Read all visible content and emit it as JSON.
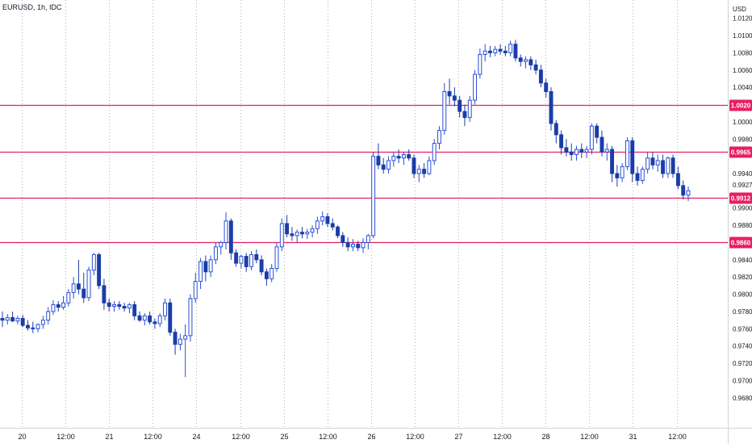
{
  "symbol_label": "EURUSD, 1h, IDC",
  "currency": "USD",
  "colors": {
    "up": "#2a4fd6",
    "down": "#1a3da8",
    "hline": "#e91e63",
    "grid": "#b0b4bc",
    "axis_text": "#131722",
    "tag_text": "#ffffff"
  },
  "chart_data": {
    "type": "candlestick",
    "title": "EURUSD, 1h, IDC",
    "ylabel": "USD",
    "ylim": [
      0.9662,
      1.013
    ],
    "grid": "vertical-dotted",
    "y_ticks": [
      "1.0120",
      "1.0100",
      "1.0080",
      "1.0060",
      "1.0040",
      "1.0000",
      "0.9980",
      "0.9940",
      "0.9927",
      "0.9900",
      "0.9880",
      "0.9840",
      "0.9820",
      "0.9800",
      "0.9780",
      "0.9760",
      "0.9740",
      "0.9720",
      "0.9700",
      "0.9680"
    ],
    "x_ticks": [
      "20",
      "12:00",
      "21",
      "12:00",
      "24",
      "12:00",
      "25",
      "12:00",
      "26",
      "12:00",
      "27",
      "12:00",
      "28",
      "12:00",
      "31",
      "12:00"
    ],
    "horizontal_lines": [
      {
        "label": "1.0020",
        "value": 1.002
      },
      {
        "label": "0.9965",
        "value": 0.9965
      },
      {
        "label": "0.9912",
        "value": 0.9912
      },
      {
        "label": "0.9860",
        "value": 0.986
      }
    ],
    "ohlc": [
      [
        0.9772,
        0.978,
        0.9762,
        0.977
      ],
      [
        0.977,
        0.9777,
        0.9765,
        0.9773
      ],
      [
        0.9773,
        0.978,
        0.9768,
        0.9769
      ],
      [
        0.9769,
        0.9775,
        0.9765,
        0.9772
      ],
      [
        0.9772,
        0.9776,
        0.9762,
        0.9764
      ],
      [
        0.9764,
        0.977,
        0.9758,
        0.9761
      ],
      [
        0.9761,
        0.9768,
        0.9755,
        0.976
      ],
      [
        0.976,
        0.9766,
        0.9756,
        0.9765
      ],
      [
        0.9765,
        0.9775,
        0.976,
        0.977
      ],
      [
        0.977,
        0.9785,
        0.9765,
        0.978
      ],
      [
        0.978,
        0.9793,
        0.9776,
        0.9788
      ],
      [
        0.9788,
        0.9792,
        0.978,
        0.9785
      ],
      [
        0.9785,
        0.9798,
        0.9782,
        0.979
      ],
      [
        0.979,
        0.9806,
        0.9786,
        0.9802
      ],
      [
        0.9802,
        0.982,
        0.9795,
        0.9812
      ],
      [
        0.9812,
        0.984,
        0.98,
        0.9806
      ],
      [
        0.9806,
        0.9825,
        0.979,
        0.9796
      ],
      [
        0.9796,
        0.9832,
        0.9792,
        0.9828
      ],
      [
        0.9828,
        0.9848,
        0.9822,
        0.9846
      ],
      [
        0.9846,
        0.9848,
        0.9806,
        0.981
      ],
      [
        0.981,
        0.9818,
        0.9782,
        0.979
      ],
      [
        0.979,
        0.9795,
        0.978,
        0.9786
      ],
      [
        0.9786,
        0.9792,
        0.978,
        0.9788
      ],
      [
        0.9788,
        0.9792,
        0.9782,
        0.9786
      ],
      [
        0.9786,
        0.979,
        0.978,
        0.9784
      ],
      [
        0.9784,
        0.979,
        0.9778,
        0.9788
      ],
      [
        0.9788,
        0.9792,
        0.977,
        0.9775
      ],
      [
        0.9775,
        0.978,
        0.9768,
        0.977
      ],
      [
        0.977,
        0.9778,
        0.9764,
        0.9775
      ],
      [
        0.9775,
        0.978,
        0.9765,
        0.9768
      ],
      [
        0.9768,
        0.9772,
        0.976,
        0.9766
      ],
      [
        0.9766,
        0.9778,
        0.9762,
        0.9775
      ],
      [
        0.9775,
        0.9795,
        0.977,
        0.979
      ],
      [
        0.979,
        0.9795,
        0.9752,
        0.9756
      ],
      [
        0.9756,
        0.976,
        0.973,
        0.9742
      ],
      [
        0.9742,
        0.9754,
        0.9735,
        0.9748
      ],
      [
        0.9748,
        0.9765,
        0.9704,
        0.9752
      ],
      [
        0.9752,
        0.98,
        0.9745,
        0.9795
      ],
      [
        0.9795,
        0.9825,
        0.979,
        0.9815
      ],
      [
        0.9815,
        0.9842,
        0.9806,
        0.9838
      ],
      [
        0.9838,
        0.9845,
        0.9815,
        0.9826
      ],
      [
        0.9826,
        0.9845,
        0.982,
        0.984
      ],
      [
        0.984,
        0.986,
        0.9835,
        0.9855
      ],
      [
        0.9855,
        0.9862,
        0.9846,
        0.986
      ],
      [
        0.986,
        0.9895,
        0.9852,
        0.9885
      ],
      [
        0.9885,
        0.9888,
        0.984,
        0.9848
      ],
      [
        0.9848,
        0.9852,
        0.9832,
        0.9836
      ],
      [
        0.9836,
        0.9846,
        0.983,
        0.9844
      ],
      [
        0.9844,
        0.9848,
        0.9826,
        0.9832
      ],
      [
        0.9832,
        0.985,
        0.9828,
        0.9846
      ],
      [
        0.9846,
        0.9852,
        0.9836,
        0.984
      ],
      [
        0.984,
        0.9845,
        0.9822,
        0.9826
      ],
      [
        0.9826,
        0.983,
        0.981,
        0.9818
      ],
      [
        0.9818,
        0.9835,
        0.9814,
        0.983
      ],
      [
        0.983,
        0.986,
        0.9826,
        0.9855
      ],
      [
        0.9855,
        0.9888,
        0.985,
        0.9882
      ],
      [
        0.9882,
        0.9892,
        0.9866,
        0.987
      ],
      [
        0.987,
        0.9878,
        0.9862,
        0.9868
      ],
      [
        0.9868,
        0.9875,
        0.986,
        0.9872
      ],
      [
        0.9872,
        0.9878,
        0.9865,
        0.987
      ],
      [
        0.987,
        0.9876,
        0.9864,
        0.9872
      ],
      [
        0.9872,
        0.988,
        0.9866,
        0.9876
      ],
      [
        0.9876,
        0.989,
        0.987,
        0.9885
      ],
      [
        0.9885,
        0.9896,
        0.988,
        0.989
      ],
      [
        0.989,
        0.9894,
        0.9878,
        0.9882
      ],
      [
        0.9882,
        0.9888,
        0.9874,
        0.9878
      ],
      [
        0.9878,
        0.988,
        0.9865,
        0.9868
      ],
      [
        0.9868,
        0.9872,
        0.9855,
        0.986
      ],
      [
        0.986,
        0.9866,
        0.985,
        0.9855
      ],
      [
        0.9855,
        0.9864,
        0.985,
        0.9858
      ],
      [
        0.9858,
        0.9862,
        0.985,
        0.9854
      ],
      [
        0.9854,
        0.9865,
        0.9848,
        0.986
      ],
      [
        0.986,
        0.987,
        0.9852,
        0.9868
      ],
      [
        0.9868,
        0.9965,
        0.9865,
        0.996
      ],
      [
        0.996,
        0.9975,
        0.9945,
        0.995
      ],
      [
        0.995,
        0.9958,
        0.994,
        0.9945
      ],
      [
        0.9945,
        0.996,
        0.994,
        0.9955
      ],
      [
        0.9955,
        0.9965,
        0.9948,
        0.996
      ],
      [
        0.996,
        0.9968,
        0.9952,
        0.9958
      ],
      [
        0.9958,
        0.9965,
        0.995,
        0.9962
      ],
      [
        0.9962,
        0.9968,
        0.9955,
        0.9958
      ],
      [
        0.9958,
        0.9962,
        0.9935,
        0.994
      ],
      [
        0.994,
        0.995,
        0.993,
        0.9945
      ],
      [
        0.9945,
        0.9952,
        0.9935,
        0.994
      ],
      [
        0.994,
        0.996,
        0.9938,
        0.9955
      ],
      [
        0.9955,
        0.998,
        0.995,
        0.9975
      ],
      [
        0.9975,
        0.9995,
        0.9968,
        0.999
      ],
      [
        0.999,
        1.0045,
        0.9985,
        1.0035
      ],
      [
        1.0035,
        1.005,
        1.002,
        1.003
      ],
      [
        1.003,
        1.004,
        1.0018,
        1.0025
      ],
      [
        1.0025,
        1.003,
        1.0005,
        1.0012
      ],
      [
        1.0012,
        1.002,
        0.9995,
        1.0005
      ],
      [
        1.0005,
        1.003,
        1.0,
        1.0025
      ],
      [
        1.0025,
        1.006,
        1.002,
        1.0055
      ],
      [
        1.0055,
        1.0085,
        1.005,
        1.0078
      ],
      [
        1.0078,
        1.009,
        1.007,
        1.0082
      ],
      [
        1.0082,
        1.0088,
        1.0075,
        1.008
      ],
      [
        1.008,
        1.0088,
        1.0076,
        1.0084
      ],
      [
        1.0084,
        1.009,
        1.0078,
        1.0082
      ],
      [
        1.0082,
        1.0088,
        1.0076,
        1.008
      ],
      [
        1.008,
        1.0094,
        1.0076,
        1.009
      ],
      [
        1.009,
        1.0095,
        1.007,
        1.0074
      ],
      [
        1.0074,
        1.0078,
        1.0064,
        1.007
      ],
      [
        1.007,
        1.0076,
        1.0062,
        1.0072
      ],
      [
        1.0072,
        1.0076,
        1.006,
        1.0066
      ],
      [
        1.0066,
        1.0072,
        1.0055,
        1.006
      ],
      [
        1.006,
        1.0066,
        1.004,
        1.0045
      ],
      [
        1.0045,
        1.005,
        1.0028,
        1.0035
      ],
      [
        1.0035,
        1.004,
        0.999,
        0.9998
      ],
      [
        0.9998,
        1.0002,
        0.9975,
        0.9985
      ],
      [
        0.9985,
        0.999,
        0.9962,
        0.997
      ],
      [
        0.997,
        0.998,
        0.996,
        0.9965
      ],
      [
        0.9965,
        0.9975,
        0.9955,
        0.9962
      ],
      [
        0.9962,
        0.9972,
        0.9955,
        0.9968
      ],
      [
        0.9968,
        0.9975,
        0.9958,
        0.9965
      ],
      [
        0.9965,
        0.9972,
        0.9958,
        0.9968
      ],
      [
        0.9968,
        0.9998,
        0.9962,
        0.9995
      ],
      [
        0.9995,
        0.9998,
        0.9975,
        0.9982
      ],
      [
        0.9982,
        0.999,
        0.996,
        0.9965
      ],
      [
        0.9965,
        0.9975,
        0.9955,
        0.9968
      ],
      [
        0.9968,
        0.9972,
        0.993,
        0.994
      ],
      [
        0.994,
        0.995,
        0.9925,
        0.9935
      ],
      [
        0.9935,
        0.9952,
        0.993,
        0.9948
      ],
      [
        0.9948,
        0.9982,
        0.9944,
        0.9978
      ],
      [
        0.9978,
        0.9982,
        0.993,
        0.994
      ],
      [
        0.994,
        0.9948,
        0.9926,
        0.9932
      ],
      [
        0.9932,
        0.9948,
        0.9928,
        0.9945
      ],
      [
        0.9945,
        0.9965,
        0.994,
        0.9958
      ],
      [
        0.9958,
        0.9965,
        0.9945,
        0.995
      ],
      [
        0.995,
        0.9962,
        0.9942,
        0.9955
      ],
      [
        0.9955,
        0.9962,
        0.9935,
        0.994
      ],
      [
        0.994,
        0.996,
        0.9935,
        0.9958
      ],
      [
        0.9958,
        0.9962,
        0.9935,
        0.994
      ],
      [
        0.994,
        0.9948,
        0.9922,
        0.9926
      ],
      [
        0.9926,
        0.9932,
        0.991,
        0.9915
      ],
      [
        0.9915,
        0.9925,
        0.9908,
        0.992
      ]
    ]
  }
}
